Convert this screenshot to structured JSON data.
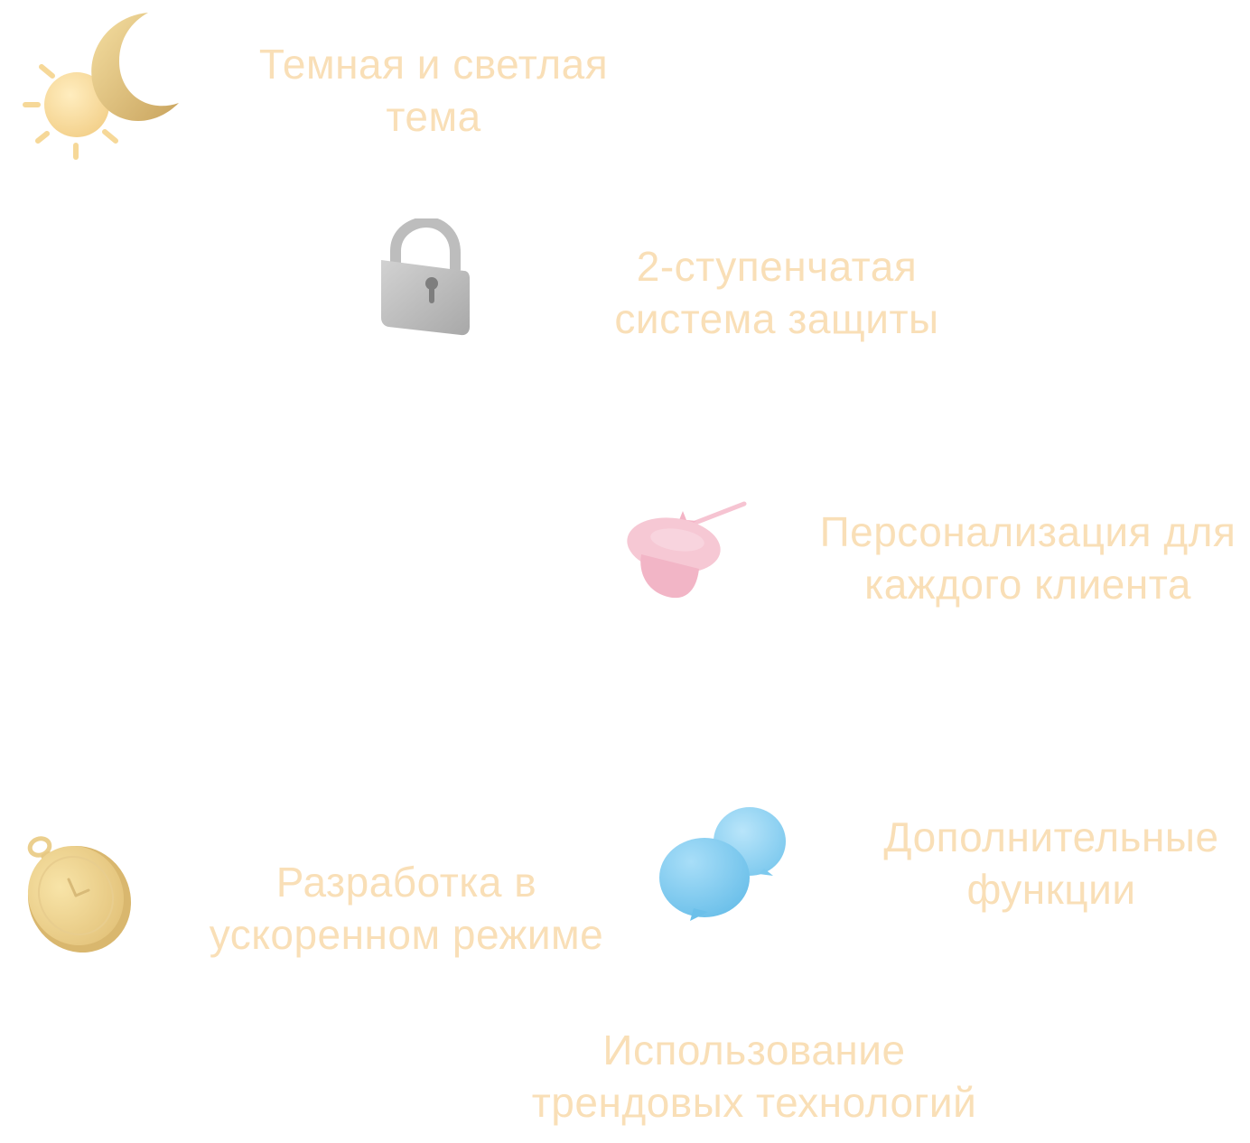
{
  "colors": {
    "text": "#F9DFB7",
    "sun": "#FAE0A0",
    "moon": "#E8CC88",
    "lock": "#B8B8B8",
    "hat": "#F6C4D2",
    "chat": "#8FD3F3",
    "watch": "#EED592"
  },
  "features": [
    {
      "id": "theme",
      "icon": "sun-moon-icon",
      "lines": [
        "Темная и светлая",
        "тема"
      ]
    },
    {
      "id": "security",
      "icon": "lock-icon",
      "lines": [
        "2-ступенчатая",
        "система защиты"
      ]
    },
    {
      "id": "personalization",
      "icon": "magic-hat-icon",
      "lines": [
        "Персонализация для",
        "каждого клиента"
      ]
    },
    {
      "id": "functions",
      "icon": "chat-bubbles-icon",
      "lines": [
        "Дополнительные",
        "функции"
      ]
    },
    {
      "id": "speed",
      "icon": "stopwatch-icon",
      "lines": [
        "Разработка в",
        "ускоренном режиме"
      ]
    },
    {
      "id": "trends",
      "icon": "",
      "lines": [
        "Использование",
        "трендовых технологий"
      ]
    }
  ]
}
